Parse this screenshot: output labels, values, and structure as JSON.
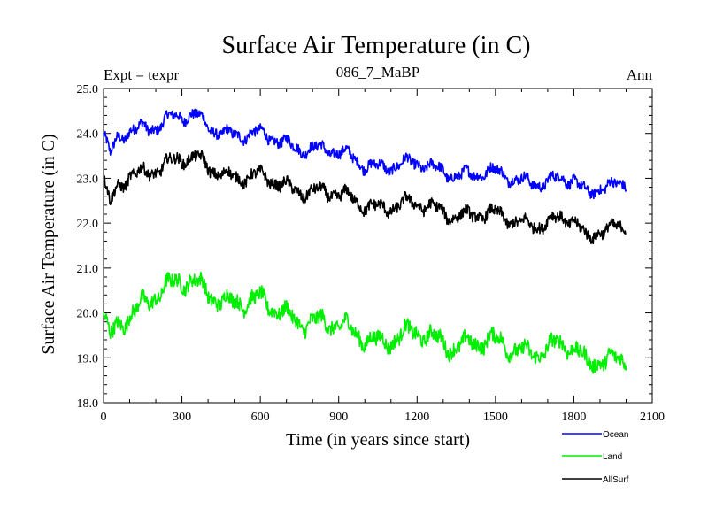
{
  "chart_data": {
    "type": "line",
    "title": "Surface Air Temperature (in C)",
    "subtitle_left": "Expt = texpr",
    "subtitle_center": "086_7_MaBP",
    "subtitle_right": "Ann",
    "xlabel": "Time (in years since start)",
    "ylabel": "Surface Air Temperature (in C)",
    "xlim": [
      0,
      2100
    ],
    "ylim": [
      18.0,
      25.0
    ],
    "x_ticks": [
      0,
      300,
      600,
      900,
      1200,
      1500,
      1800,
      2100
    ],
    "x_tick_labels": [
      "0",
      "300",
      "600",
      "900",
      "1200",
      "1500",
      "1800",
      "2100"
    ],
    "y_ticks": [
      18,
      19,
      20,
      21,
      22,
      23,
      24,
      25
    ],
    "y_tick_labels": [
      "18.0",
      "19.0",
      "20.0",
      "21.0",
      "22.0",
      "23.0",
      "24.0",
      "25.0"
    ],
    "series": [
      {
        "name": "Ocean",
        "color": "#0000ff",
        "x": [
          0,
          25,
          50,
          100,
          150,
          200,
          250,
          300,
          350,
          400,
          450,
          500,
          600,
          700,
          800,
          900,
          1000,
          1100,
          1200,
          1300,
          1400,
          1500,
          1600,
          1700,
          1800,
          1850,
          1900,
          2000
        ],
        "values": [
          23.9,
          23.4,
          23.8,
          24.1,
          24.2,
          24.2,
          24.3,
          24.3,
          24.35,
          24.2,
          24.1,
          24.0,
          23.9,
          23.8,
          23.7,
          23.5,
          23.35,
          23.3,
          23.25,
          23.2,
          23.1,
          23.05,
          23.0,
          22.95,
          22.9,
          22.6,
          22.9,
          22.9
        ]
      },
      {
        "name": "Land",
        "color": "#00ee00",
        "x": [
          0,
          25,
          50,
          100,
          150,
          200,
          250,
          300,
          350,
          400,
          450,
          500,
          600,
          700,
          800,
          900,
          1000,
          1100,
          1200,
          1300,
          1400,
          1500,
          1600,
          1700,
          1800,
          1850,
          1900,
          2000
        ],
        "values": [
          19.8,
          19.3,
          19.6,
          20.0,
          20.3,
          20.5,
          20.55,
          20.6,
          20.6,
          20.5,
          20.4,
          20.3,
          20.15,
          20.0,
          19.85,
          19.6,
          19.5,
          19.45,
          19.45,
          19.4,
          19.35,
          19.25,
          19.2,
          19.25,
          19.15,
          18.8,
          19.1,
          19.0
        ]
      },
      {
        "name": "AllSurf",
        "color": "#000000",
        "x": [
          0,
          25,
          50,
          100,
          150,
          200,
          250,
          300,
          350,
          400,
          450,
          500,
          600,
          700,
          800,
          900,
          1000,
          1100,
          1200,
          1300,
          1400,
          1500,
          1600,
          1700,
          1800,
          1850,
          1900,
          2000
        ],
        "values": [
          22.9,
          22.3,
          22.7,
          23.1,
          23.2,
          23.25,
          23.3,
          23.35,
          23.4,
          23.3,
          23.2,
          23.05,
          22.95,
          22.85,
          22.75,
          22.55,
          22.45,
          22.4,
          22.35,
          22.3,
          22.2,
          22.1,
          22.05,
          22.05,
          22.0,
          21.6,
          21.95,
          21.95
        ]
      }
    ],
    "legend": {
      "position": "bottom-right",
      "entries": [
        "Ocean",
        "Land",
        "AllSurf"
      ]
    },
    "grid": false
  }
}
